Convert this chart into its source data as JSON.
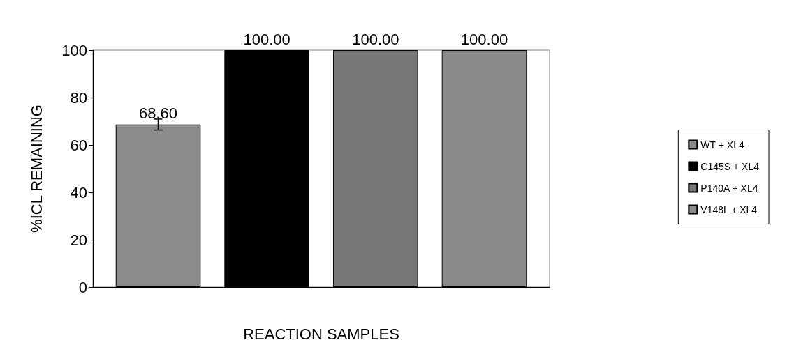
{
  "chart_data": {
    "type": "bar",
    "xlabel": "REACTION SAMPLES",
    "ylabel": "%ICL REMAINING",
    "categories": [
      null
    ],
    "series": [
      {
        "name": "WT + XL4",
        "color": "#8c8c8c",
        "values": [
          68.6
        ],
        "value_labels": [
          "68.60"
        ],
        "errors": [
          2.3
        ]
      },
      {
        "name": "C145S + XL4",
        "color": "#000000",
        "values": [
          100
        ],
        "value_labels": [
          "100.00"
        ]
      },
      {
        "name": "P140A + XL4",
        "color": "#777777",
        "values": [
          100
        ],
        "value_labels": [
          "100.00"
        ]
      },
      {
        "name": "V148L + XL4",
        "color": "#8a8a8a",
        "values": [
          100
        ],
        "value_labels": [
          "100.00"
        ]
      }
    ],
    "ylim": [
      0,
      100
    ],
    "yticks": [
      0,
      20,
      40,
      60,
      80,
      100
    ],
    "grid": false,
    "legend": "right"
  }
}
